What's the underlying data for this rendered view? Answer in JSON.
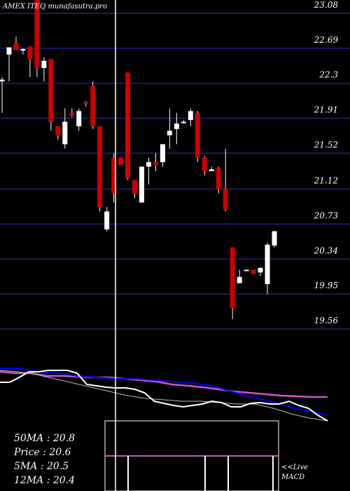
{
  "header": {
    "title": "AMEX ITEQ munafasutra.pro"
  },
  "indicators": {
    "ma50": "50MA : 20.8",
    "price": "Price   : 20.6",
    "ma5": "5MA : 20.5",
    "ma12": "12MA : 20.4"
  },
  "live_label": "<<Live",
  "macd_label": "MACD",
  "colors": {
    "background": "#000000",
    "gridline": "#1a1a66",
    "up_candle": "#ffffff",
    "down_candle": "#cc0000",
    "price_line": "#ffffff",
    "ma_blue": "#0000ee",
    "ma_magenta": "#cc55cc",
    "cursor": "#ffffff"
  },
  "chart_data": {
    "type": "candlestick",
    "title": "AMEX ITEQ munafasutra.pro",
    "y_ticks": [
      23.08,
      22.69,
      22.3,
      21.91,
      21.52,
      21.12,
      20.73,
      20.34,
      19.95,
      19.56
    ],
    "ylim": [
      19.46,
      23.08
    ],
    "grid": true,
    "candles": [
      {
        "o": 22.25,
        "h": 22.3,
        "l": 21.9,
        "c": 22.27
      },
      {
        "o": 22.55,
        "h": 22.62,
        "l": 22.25,
        "c": 22.63
      },
      {
        "o": 22.68,
        "h": 22.75,
        "l": 22.6,
        "c": 22.6
      },
      {
        "o": 22.6,
        "h": 22.62,
        "l": 22.55,
        "c": 22.61
      },
      {
        "o": 22.64,
        "h": 22.62,
        "l": 22.3,
        "c": 22.5
      },
      {
        "o": 23.25,
        "h": 23.25,
        "l": 22.3,
        "c": 22.4
      },
      {
        "o": 22.4,
        "h": 22.52,
        "l": 22.25,
        "c": 22.48
      },
      {
        "o": 22.5,
        "h": 22.5,
        "l": 21.7,
        "c": 21.8
      },
      {
        "o": 21.75,
        "h": 21.75,
        "l": 21.6,
        "c": 21.65
      },
      {
        "o": 21.55,
        "h": 21.95,
        "l": 21.5,
        "c": 21.8
      },
      {
        "o": 21.9,
        "h": 21.95,
        "l": 21.85,
        "c": 21.87
      },
      {
        "o": 21.75,
        "h": 21.95,
        "l": 21.7,
        "c": 21.92
      },
      {
        "o": 22.02,
        "h": 22.03,
        "l": 21.97,
        "c": 22.0
      },
      {
        "o": 22.2,
        "h": 22.25,
        "l": 21.72,
        "c": 21.75
      },
      {
        "o": 21.75,
        "h": 21.75,
        "l": 20.8,
        "c": 20.85
      },
      {
        "o": 20.6,
        "h": 20.85,
        "l": 20.58,
        "c": 20.8
      },
      {
        "o": 21.4,
        "h": 21.45,
        "l": 20.9,
        "c": 21.0
      },
      {
        "o": 21.4,
        "h": 21.4,
        "l": 21.35,
        "c": 21.32
      },
      {
        "o": 22.35,
        "h": 22.35,
        "l": 21.15,
        "c": 21.17
      },
      {
        "o": 21.15,
        "h": 21.15,
        "l": 20.95,
        "c": 21.0
      },
      {
        "o": 20.9,
        "h": 21.3,
        "l": 20.9,
        "c": 21.3
      },
      {
        "o": 21.3,
        "h": 21.4,
        "l": 21.1,
        "c": 21.35
      },
      {
        "o": 21.35,
        "h": 21.45,
        "l": 21.25,
        "c": 21.32
      },
      {
        "o": 21.35,
        "h": 21.55,
        "l": 21.3,
        "c": 21.55
      },
      {
        "o": 21.65,
        "h": 21.95,
        "l": 21.5,
        "c": 21.7
      },
      {
        "o": 21.72,
        "h": 21.9,
        "l": 21.55,
        "c": 21.78
      },
      {
        "o": 21.8,
        "h": 21.82,
        "l": 21.78,
        "c": 21.8
      },
      {
        "o": 21.82,
        "h": 21.95,
        "l": 21.75,
        "c": 21.92
      },
      {
        "o": 21.9,
        "h": 21.92,
        "l": 21.35,
        "c": 21.4
      },
      {
        "o": 21.4,
        "h": 21.42,
        "l": 21.2,
        "c": 21.25
      },
      {
        "o": 21.25,
        "h": 21.3,
        "l": 21.27,
        "c": 21.27
      },
      {
        "o": 21.28,
        "h": 21.3,
        "l": 21.0,
        "c": 21.05
      },
      {
        "o": 21.05,
        "h": 21.5,
        "l": 20.8,
        "c": 20.82
      },
      {
        "o": 20.4,
        "h": 20.4,
        "l": 19.6,
        "c": 19.72
      },
      {
        "o": 20.0,
        "h": 20.15,
        "l": 20.0,
        "c": 20.07
      },
      {
        "o": 20.15,
        "h": 20.15,
        "l": 20.15,
        "c": 20.15
      },
      {
        "o": 20.15,
        "h": 20.15,
        "l": 20.1,
        "c": 20.1
      },
      {
        "o": 20.12,
        "h": 20.18,
        "l": 20.08,
        "c": 20.17
      },
      {
        "o": 19.99,
        "h": 20.45,
        "l": 19.88,
        "c": 20.43
      },
      {
        "o": 20.42,
        "h": 20.58,
        "l": 20.4,
        "c": 20.58
      }
    ],
    "overlay_lines": {
      "price": [
        0.45,
        0.45,
        0.38,
        0.3,
        0.3,
        0.28,
        0.28,
        0.28,
        0.32,
        0.48,
        0.5,
        0.52,
        0.53,
        0.53,
        0.55,
        0.6,
        0.72,
        0.75,
        0.78,
        0.8,
        0.78,
        0.76,
        0.72,
        0.74,
        0.8,
        0.8,
        0.75,
        0.74,
        0.76,
        0.76,
        0.72,
        0.78,
        0.82,
        0.92,
        1.0
      ],
      "ma5": [
        0.28,
        0.3,
        0.34,
        0.4,
        0.46,
        0.52,
        0.58,
        0.64,
        0.68,
        0.7,
        0.72,
        0.72,
        0.74,
        0.76,
        0.76,
        0.82,
        0.9,
        0.96,
        1.0
      ],
      "ma12": [
        0.25,
        0.25,
        0.3,
        0.32,
        0.36,
        0.38,
        0.4,
        0.4,
        0.42,
        0.44,
        0.46,
        0.5,
        0.58,
        0.66,
        0.72,
        0.8,
        0.86,
        0.92
      ],
      "ma50": [
        0.3,
        0.32,
        0.32,
        0.36,
        0.36,
        0.37,
        0.38,
        0.38,
        0.4,
        0.42,
        0.44,
        0.48,
        0.5,
        0.52,
        0.55,
        0.58,
        0.6,
        0.62,
        0.64,
        0.65,
        0.66,
        0.66
      ]
    },
    "macd_panel": true
  }
}
